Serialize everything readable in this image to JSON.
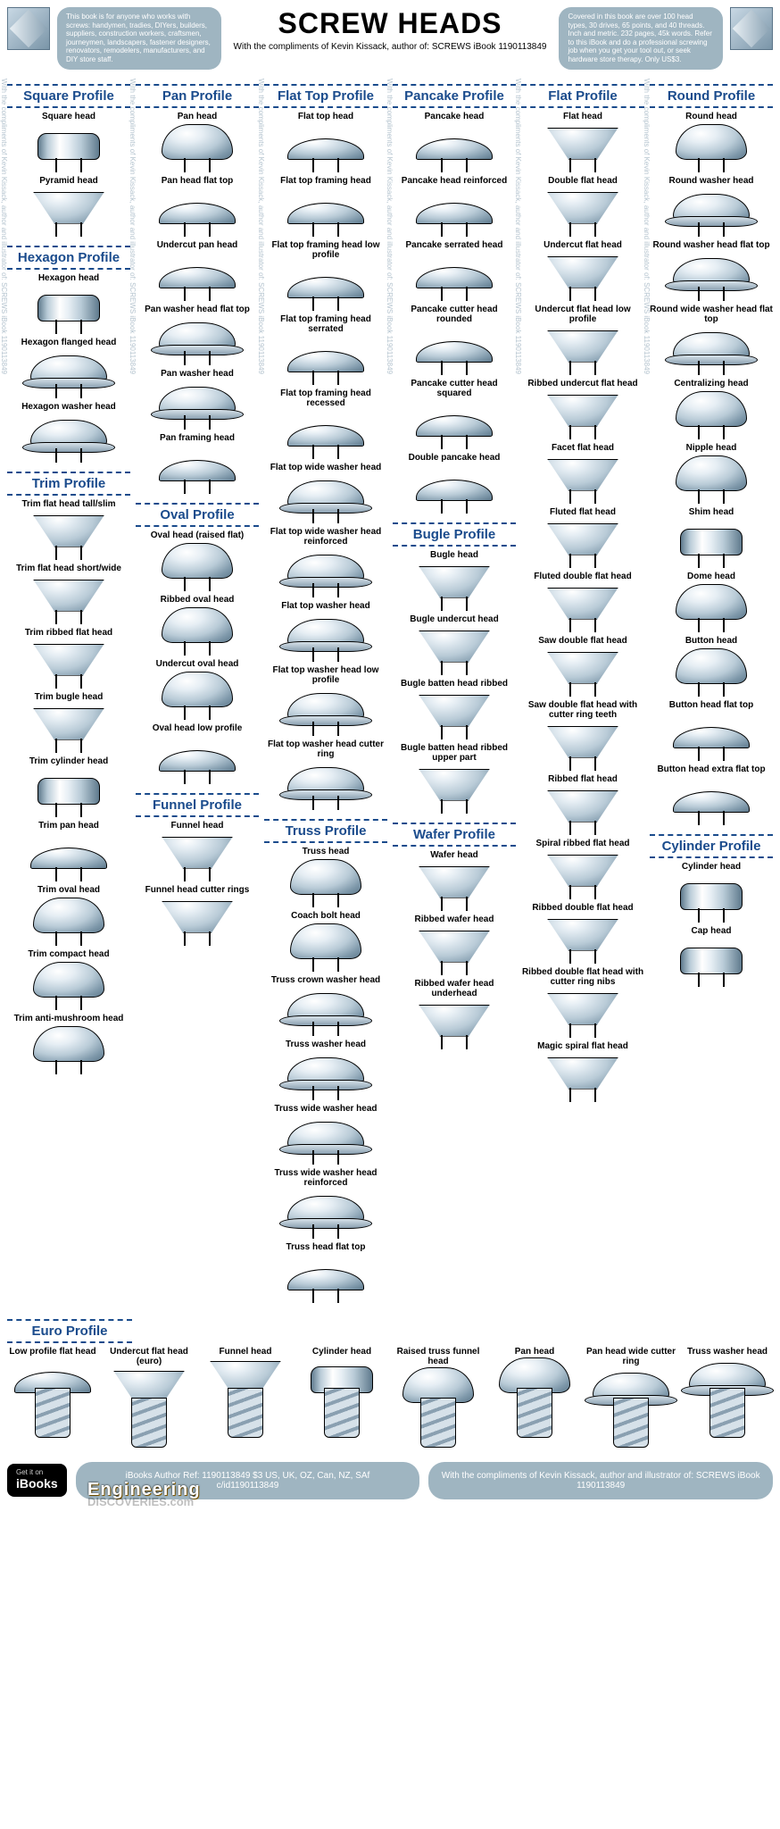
{
  "header": {
    "title": "SCREW HEADS",
    "subtitle": "With the compliments of Kevin Kissack, author of: SCREWS iBook 1190113849",
    "left_pill": "This book is for anyone who works with screws: handymen, tradies, DIYers, builders, suppliers, construction workers, craftsmen, journeymen, landscapers, fastener designers, renovators, remodelers, manufacturers, and DIY store staff.",
    "right_pill": "Covered in this book are over 100 head types, 30 drives, 65 points, and 40 threads. Inch and metric. 232 pages, 45k words. Refer to this iBook and do a professional screwing job when you get your tool out, or seek hardware store therapy. Only US$3."
  },
  "watermark": "With the compliments of Kevin Kissack, author and illustrator of: SCREWS iBook 1190113849",
  "styling": {
    "accent_color": "#1a4b8c",
    "metal_gradient": [
      "#ffffff",
      "#e6eef4",
      "#b9cbd7",
      "#7f99ab",
      "#5f7a8d"
    ],
    "pill_bg": "#9fb5c1",
    "border": "#000000"
  },
  "columns": [
    {
      "sections": [
        {
          "title": "Square Profile",
          "items": [
            {
              "label": "Square head",
              "shape": "cylinder"
            },
            {
              "label": "Pyramid head",
              "shape": "cone"
            }
          ]
        },
        {
          "title": "Hexagon Profile",
          "items": [
            {
              "label": "Hexagon head",
              "shape": "cylinder"
            },
            {
              "label": "Hexagon flanged head",
              "shape": "washer"
            },
            {
              "label": "Hexagon washer head",
              "shape": "washer"
            }
          ]
        },
        {
          "title": "Trim Profile",
          "items": [
            {
              "label": "Trim flat head tall/slim",
              "shape": "cone"
            },
            {
              "label": "Trim flat head short/wide",
              "shape": "cone"
            },
            {
              "label": "Trim ribbed flat head",
              "shape": "cone"
            },
            {
              "label": "Trim bugle head",
              "shape": "cone"
            },
            {
              "label": "Trim cylinder head",
              "shape": "cylinder"
            },
            {
              "label": "Trim pan head",
              "shape": "flat"
            },
            {
              "label": "Trim oval head",
              "shape": "dome"
            },
            {
              "label": "Trim compact head",
              "shape": "dome"
            },
            {
              "label": "Trim anti-mushroom head",
              "shape": "dome"
            }
          ]
        }
      ]
    },
    {
      "sections": [
        {
          "title": "Pan Profile",
          "items": [
            {
              "label": "Pan head",
              "shape": "dome"
            },
            {
              "label": "Pan head flat top",
              "shape": "flat"
            },
            {
              "label": "Undercut pan head",
              "shape": "flat"
            },
            {
              "label": "Pan washer head flat top",
              "shape": "washer"
            },
            {
              "label": "Pan washer head",
              "shape": "washer"
            },
            {
              "label": "Pan framing head",
              "shape": "flat"
            }
          ]
        },
        {
          "title": "Oval Profile",
          "items": [
            {
              "label": "Oval head (raised flat)",
              "shape": "dome"
            },
            {
              "label": "Ribbed oval head",
              "shape": "dome"
            },
            {
              "label": "Undercut oval head",
              "shape": "dome"
            },
            {
              "label": "Oval head low profile",
              "shape": "flat"
            }
          ]
        },
        {
          "title": "Funnel Profile",
          "items": [
            {
              "label": "Funnel head",
              "shape": "cone"
            },
            {
              "label": "Funnel head cutter rings",
              "shape": "cone"
            }
          ]
        }
      ]
    },
    {
      "sections": [
        {
          "title": "Flat Top Profile",
          "items": [
            {
              "label": "Flat top head",
              "shape": "flat"
            },
            {
              "label": "Flat top framing head",
              "shape": "flat"
            },
            {
              "label": "Flat top framing head low profile",
              "shape": "flat"
            },
            {
              "label": "Flat top framing head serrated",
              "shape": "flat"
            },
            {
              "label": "Flat top framing head recessed",
              "shape": "flat"
            },
            {
              "label": "Flat top wide washer head",
              "shape": "washer"
            },
            {
              "label": "Flat top wide washer head reinforced",
              "shape": "washer"
            },
            {
              "label": "Flat top washer head",
              "shape": "washer"
            },
            {
              "label": "Flat top washer head low profile",
              "shape": "washer"
            },
            {
              "label": "Flat top washer head cutter ring",
              "shape": "washer"
            }
          ]
        },
        {
          "title": "Truss Profile",
          "items": [
            {
              "label": "Truss head",
              "shape": "dome"
            },
            {
              "label": "Coach bolt head",
              "shape": "dome"
            },
            {
              "label": "Truss crown washer head",
              "shape": "washer"
            },
            {
              "label": "Truss washer head",
              "shape": "washer"
            },
            {
              "label": "Truss wide washer head",
              "shape": "washer"
            },
            {
              "label": "Truss wide washer head reinforced",
              "shape": "washer"
            },
            {
              "label": "Truss head flat top",
              "shape": "flat"
            }
          ]
        }
      ]
    },
    {
      "sections": [
        {
          "title": "Pancake Profile",
          "items": [
            {
              "label": "Pancake head",
              "shape": "flat"
            },
            {
              "label": "Pancake head reinforced",
              "shape": "flat"
            },
            {
              "label": "Pancake serrated head",
              "shape": "flat"
            },
            {
              "label": "Pancake cutter head rounded",
              "shape": "flat"
            },
            {
              "label": "Pancake cutter head squared",
              "shape": "flat"
            },
            {
              "label": "Double pancake head",
              "shape": "flat"
            }
          ]
        },
        {
          "title": "Bugle Profile",
          "items": [
            {
              "label": "Bugle head",
              "shape": "cone"
            },
            {
              "label": "Bugle undercut head",
              "shape": "cone"
            },
            {
              "label": "Bugle batten head ribbed",
              "shape": "cone"
            },
            {
              "label": "Bugle batten head ribbed upper part",
              "shape": "cone"
            }
          ]
        },
        {
          "title": "Wafer Profile",
          "items": [
            {
              "label": "Wafer head",
              "shape": "cone"
            },
            {
              "label": "Ribbed wafer head",
              "shape": "cone"
            },
            {
              "label": "Ribbed wafer head underhead",
              "shape": "cone"
            }
          ]
        }
      ]
    },
    {
      "sections": [
        {
          "title": "Flat Profile",
          "items": [
            {
              "label": "Flat head",
              "shape": "cone"
            },
            {
              "label": "Double flat head",
              "shape": "cone"
            },
            {
              "label": "Undercut flat head",
              "shape": "cone"
            },
            {
              "label": "Undercut flat head low profile",
              "shape": "cone"
            },
            {
              "label": "Ribbed undercut flat head",
              "shape": "cone"
            },
            {
              "label": "Facet flat head",
              "shape": "cone"
            },
            {
              "label": "Fluted flat head",
              "shape": "cone"
            },
            {
              "label": "Fluted double flat head",
              "shape": "cone"
            },
            {
              "label": "Saw double flat head",
              "shape": "cone"
            },
            {
              "label": "Saw double flat head with cutter ring teeth",
              "shape": "cone"
            },
            {
              "label": "Ribbed flat head",
              "shape": "cone"
            },
            {
              "label": "Spiral ribbed flat head",
              "shape": "cone"
            },
            {
              "label": "Ribbed double flat head",
              "shape": "cone"
            },
            {
              "label": "Ribbed double flat head with cutter ring nibs",
              "shape": "cone"
            },
            {
              "label": "Magic spiral flat head",
              "shape": "cone"
            }
          ]
        }
      ]
    },
    {
      "sections": [
        {
          "title": "Round Profile",
          "items": [
            {
              "label": "Round head",
              "shape": "dome"
            },
            {
              "label": "Round washer head",
              "shape": "washer"
            },
            {
              "label": "Round washer head flat top",
              "shape": "washer"
            },
            {
              "label": "Round wide washer head flat top",
              "shape": "washer"
            },
            {
              "label": "Centralizing head",
              "shape": "dome"
            },
            {
              "label": "Nipple head",
              "shape": "dome"
            },
            {
              "label": "Shim head",
              "shape": "cylinder"
            },
            {
              "label": "Dome head",
              "shape": "dome"
            },
            {
              "label": "Button head",
              "shape": "dome"
            },
            {
              "label": "Button head flat top",
              "shape": "flat"
            },
            {
              "label": "Button head extra flat top",
              "shape": "flat"
            }
          ]
        },
        {
          "title": "Cylinder Profile",
          "items": [
            {
              "label": "Cylinder head",
              "shape": "cylinder"
            },
            {
              "label": "Cap head",
              "shape": "cylinder"
            }
          ]
        }
      ]
    }
  ],
  "euro": {
    "title": "Euro Profile",
    "items": [
      {
        "label": "Low profile flat head",
        "shape": "flat"
      },
      {
        "label": "Undercut flat head (euro)",
        "shape": "cone"
      },
      {
        "label": "Funnel head",
        "shape": "cone"
      },
      {
        "label": "Cylinder head",
        "shape": "cylinder"
      },
      {
        "label": "Raised truss funnel head",
        "shape": "dome"
      },
      {
        "label": "Pan head",
        "shape": "dome"
      },
      {
        "label": "Pan head wide cutter ring",
        "shape": "washer"
      },
      {
        "label": "Truss washer head",
        "shape": "washer"
      }
    ]
  },
  "footer": {
    "badge_top": "Get it on",
    "badge_main": "iBooks",
    "engineering": "Engineering",
    "discoveries": "DISCOVERIES.com",
    "pill_left": "iBooks Author Ref: 1190113849    $3  US, UK, OZ, Can, NZ, SAf",
    "pill_left_2": "c/id1190113849",
    "pill_right": "With the compliments of Kevin Kissack, author and illustrator of: SCREWS iBook 1190113849"
  }
}
